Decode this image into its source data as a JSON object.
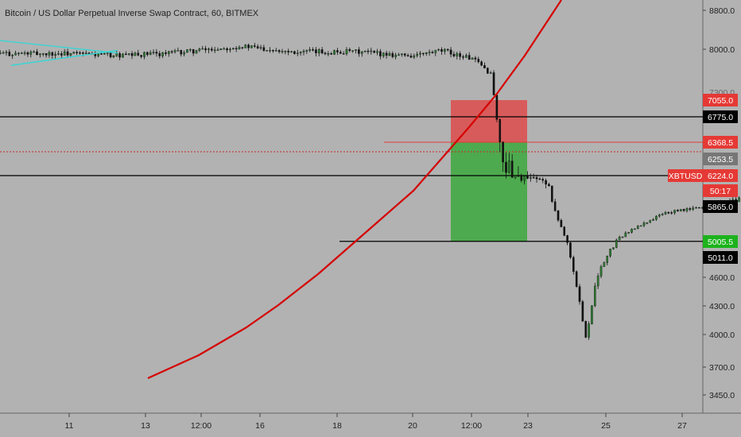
{
  "chart_data": {
    "type": "candlestick",
    "title": "Bitcoin / US Dollar Perpetual Inverse Swap Contract, 60, BITMEX",
    "symbol": "XBTUSD",
    "countdown": "50:17",
    "ylim": [
      3350,
      8900
    ],
    "x_ticks": [
      "11",
      "13",
      "12:00",
      "16",
      "18",
      "20",
      "12:00",
      "23",
      "25",
      "27"
    ],
    "y_ticks": [
      "8800.0",
      "8000.0",
      "4600.0",
      "4300.0",
      "4000.0",
      "3700.0",
      "3450.0"
    ],
    "faded_tick": "7300.0",
    "price_labels": {
      "target_top": "7055.0",
      "level_upper": "6775.0",
      "entry": "6368.5",
      "last": "6253.5",
      "current": "6224.0",
      "level_mid": "5865.0",
      "stop": "5005.5",
      "level_lower": "5011.0"
    },
    "horizontal_levels": [
      6775,
      6224,
      5011
    ],
    "risk_reward": {
      "entry": 6368.5,
      "target": 7055.0,
      "stop": 5005.5
    },
    "parabolic_curve": [
      [
        0,
        3620
      ],
      [
        20,
        3820
      ],
      [
        40,
        4060
      ],
      [
        55,
        4400
      ],
      [
        65,
        4750
      ],
      [
        73,
        5100
      ],
      [
        79,
        5550
      ],
      [
        86,
        6224
      ],
      [
        91,
        6900
      ],
      [
        97,
        7750
      ],
      [
        104,
        8900
      ]
    ],
    "triangle_lines": [
      [
        [
          0,
          8180
        ],
        [
          21,
          7930
        ]
      ],
      [
        [
          0,
          7700
        ],
        [
          21,
          7980
        ]
      ]
    ],
    "price_path": [
      [
        0,
        7920
      ],
      [
        3,
        7880
      ],
      [
        6,
        7950
      ],
      [
        9,
        8060
      ],
      [
        12,
        7950
      ],
      [
        15,
        7950
      ],
      [
        18,
        7880
      ],
      [
        19.5,
        7970
      ],
      [
        21,
        7830
      ],
      [
        22,
        7550
      ],
      [
        22.5,
        6300
      ],
      [
        23.5,
        6200
      ],
      [
        25,
        6150
      ],
      [
        26,
        5000
      ],
      [
        27,
        3950
      ],
      [
        27.5,
        4600
      ],
      [
        29,
        5200
      ],
      [
        31,
        5700
      ],
      [
        33,
        5850
      ],
      [
        35,
        5950
      ],
      [
        37,
        5900
      ],
      [
        39,
        5700
      ],
      [
        41,
        5500
      ],
      [
        43,
        5600
      ],
      [
        45,
        5800
      ],
      [
        47,
        6000
      ],
      [
        48,
        5600
      ],
      [
        50,
        5400
      ],
      [
        52,
        4700
      ],
      [
        54,
        4700
      ],
      [
        56,
        5200
      ],
      [
        58,
        5600
      ],
      [
        60,
        5700
      ],
      [
        62,
        5800
      ],
      [
        64,
        5600
      ],
      [
        66,
        5400
      ],
      [
        67,
        5300
      ],
      [
        69,
        5600
      ],
      [
        71,
        5750
      ],
      [
        73,
        6000
      ],
      [
        74.5,
        6300
      ],
      [
        76,
        6500
      ],
      [
        78,
        6380
      ],
      [
        80,
        6700
      ],
      [
        81,
        6350
      ],
      [
        82,
        6320
      ],
      [
        83,
        6250
      ],
      [
        84,
        6310
      ]
    ]
  }
}
